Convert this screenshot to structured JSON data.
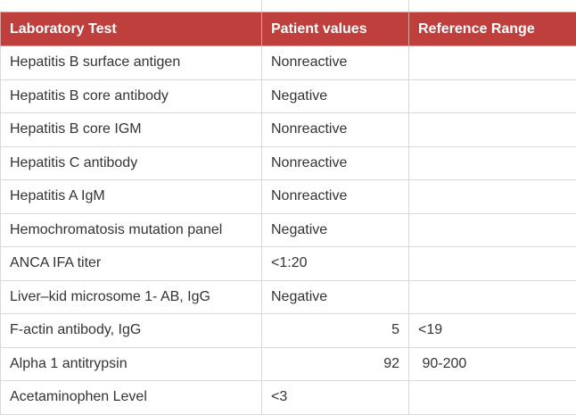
{
  "table": {
    "headers": [
      "Laboratory Test",
      "Patient values",
      "Reference Range"
    ],
    "rows": [
      [
        "Hepatitis B surface antigen",
        "Nonreactive",
        ""
      ],
      [
        "Hepatitis B core antibody",
        "Negative",
        ""
      ],
      [
        "Hepatitis B core IGM",
        "Nonreactive",
        ""
      ],
      [
        "Hepatitis C antibody",
        "Nonreactive",
        ""
      ],
      [
        "Hepatitis A IgM",
        "Nonreactive",
        ""
      ],
      [
        "Hemochromatosis mutation panel",
        "Negative",
        ""
      ],
      [
        "ANCA IFA titer",
        "<1:20",
        ""
      ],
      [
        "Liver–kid microsome 1- AB, IgG",
        "Negative",
        ""
      ],
      [
        "F-actin antibody, IgG",
        "5",
        "<19"
      ],
      [
        "Alpha 1 antitrypsin",
        "92",
        " 90-200"
      ],
      [
        "Acetaminophen Level",
        "<3",
        ""
      ]
    ]
  },
  "colors": {
    "header_background": "#bf3f3c",
    "header_text": "#ffffff",
    "grid_line": "#d9d9d9"
  }
}
